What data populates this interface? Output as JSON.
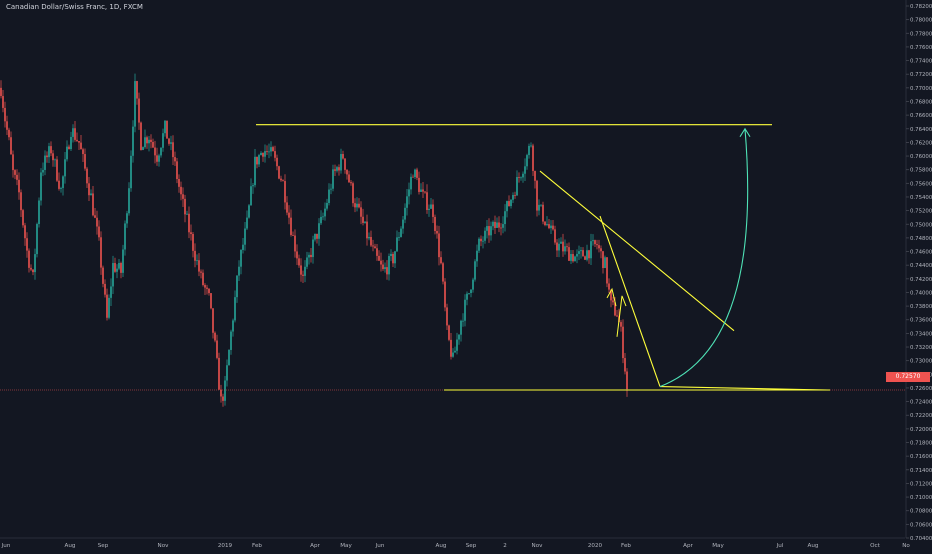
{
  "header": {
    "title": "Canadian Dollar/Swiss Franc, 1D, FXCM"
  },
  "last_price_badge": "0.72570",
  "colors": {
    "background": "#131722",
    "bull": "#26a69a",
    "bear": "#ef5350",
    "drawing": "#ffff3b",
    "arrow": "#4fe3b7",
    "axis_text": "#b2b5be",
    "price_line": "#ef5350"
  },
  "chart_data": {
    "type": "candlestick",
    "title": "Canadian Dollar/Swiss Franc, 1D, FXCM",
    "y_axis": {
      "ticks": [
        "0.78200",
        "0.78000",
        "0.77800",
        "0.77600",
        "0.77400",
        "0.77200",
        "0.77000",
        "0.76800",
        "0.76600",
        "0.76400",
        "0.76200",
        "0.76000",
        "0.75800",
        "0.75600",
        "0.75400",
        "0.75200",
        "0.75000",
        "0.74800",
        "0.74600",
        "0.74400",
        "0.74200",
        "0.74000",
        "0.73800",
        "0.73600",
        "0.73400",
        "0.73200",
        "0.73000",
        "0.72800",
        "0.72600",
        "0.72400",
        "0.72200",
        "0.72000",
        "0.71800",
        "0.71600",
        "0.71400",
        "0.71200",
        "0.71000",
        "0.70800",
        "0.70600",
        "0.70400"
      ],
      "range": [
        0.704,
        0.782
      ]
    },
    "x_axis": {
      "ticks": [
        "Jun",
        "Aug",
        "Sep",
        "Nov",
        "2019",
        "Feb",
        "Apr",
        "May",
        "Jun",
        "Aug",
        "Sep",
        "2",
        "Nov",
        "2020",
        "Feb",
        "Apr",
        "May",
        "Jul",
        "Aug",
        "Oct",
        "No"
      ]
    },
    "last_price": 0.7257,
    "price_series": [
      {
        "t": 0,
        "v": 0.77
      },
      {
        "t": 4,
        "v": 0.7655
      },
      {
        "t": 8,
        "v": 0.762
      },
      {
        "t": 12,
        "v": 0.7575
      },
      {
        "t": 18,
        "v": 0.7545
      },
      {
        "t": 26,
        "v": 0.746
      },
      {
        "t": 32,
        "v": 0.742
      },
      {
        "t": 40,
        "v": 0.758
      },
      {
        "t": 50,
        "v": 0.761
      },
      {
        "t": 60,
        "v": 0.755
      },
      {
        "t": 70,
        "v": 0.764
      },
      {
        "t": 78,
        "v": 0.762
      },
      {
        "t": 90,
        "v": 0.754
      },
      {
        "t": 98,
        "v": 0.747
      },
      {
        "t": 106,
        "v": 0.736
      },
      {
        "t": 112,
        "v": 0.744
      },
      {
        "t": 120,
        "v": 0.743
      },
      {
        "t": 128,
        "v": 0.756
      },
      {
        "t": 134,
        "v": 0.77
      },
      {
        "t": 140,
        "v": 0.762
      },
      {
        "t": 148,
        "v": 0.763
      },
      {
        "t": 156,
        "v": 0.76
      },
      {
        "t": 164,
        "v": 0.764
      },
      {
        "t": 172,
        "v": 0.76
      },
      {
        "t": 180,
        "v": 0.754
      },
      {
        "t": 190,
        "v": 0.748
      },
      {
        "t": 200,
        "v": 0.742
      },
      {
        "t": 208,
        "v": 0.739
      },
      {
        "t": 214,
        "v": 0.732
      },
      {
        "t": 220,
        "v": 0.724
      },
      {
        "t": 224,
        "v": 0.726
      },
      {
        "t": 230,
        "v": 0.734
      },
      {
        "t": 238,
        "v": 0.744
      },
      {
        "t": 246,
        "v": 0.75
      },
      {
        "t": 254,
        "v": 0.759
      },
      {
        "t": 262,
        "v": 0.761
      },
      {
        "t": 272,
        "v": 0.76
      },
      {
        "t": 282,
        "v": 0.756
      },
      {
        "t": 292,
        "v": 0.748
      },
      {
        "t": 302,
        "v": 0.742
      },
      {
        "t": 312,
        "v": 0.747
      },
      {
        "t": 322,
        "v": 0.751
      },
      {
        "t": 332,
        "v": 0.757
      },
      {
        "t": 342,
        "v": 0.76
      },
      {
        "t": 352,
        "v": 0.754
      },
      {
        "t": 362,
        "v": 0.75
      },
      {
        "t": 372,
        "v": 0.746
      },
      {
        "t": 382,
        "v": 0.743
      },
      {
        "t": 392,
        "v": 0.745
      },
      {
        "t": 402,
        "v": 0.751
      },
      {
        "t": 412,
        "v": 0.758
      },
      {
        "t": 422,
        "v": 0.754
      },
      {
        "t": 432,
        "v": 0.752
      },
      {
        "t": 440,
        "v": 0.744
      },
      {
        "t": 446,
        "v": 0.734
      },
      {
        "t": 452,
        "v": 0.73
      },
      {
        "t": 460,
        "v": 0.736
      },
      {
        "t": 468,
        "v": 0.74
      },
      {
        "t": 478,
        "v": 0.747
      },
      {
        "t": 488,
        "v": 0.749
      },
      {
        "t": 498,
        "v": 0.75
      },
      {
        "t": 508,
        "v": 0.753
      },
      {
        "t": 518,
        "v": 0.757
      },
      {
        "t": 526,
        "v": 0.76
      },
      {
        "t": 530,
        "v": 0.762
      },
      {
        "t": 536,
        "v": 0.753
      },
      {
        "t": 546,
        "v": 0.75
      },
      {
        "t": 556,
        "v": 0.747
      },
      {
        "t": 566,
        "v": 0.746
      },
      {
        "t": 576,
        "v": 0.745
      },
      {
        "t": 586,
        "v": 0.746
      },
      {
        "t": 596,
        "v": 0.747
      },
      {
        "t": 604,
        "v": 0.744
      },
      {
        "t": 610,
        "v": 0.738
      },
      {
        "t": 616,
        "v": 0.737
      },
      {
        "t": 620,
        "v": 0.734
      },
      {
        "t": 624,
        "v": 0.729
      },
      {
        "t": 626,
        "v": 0.7258
      }
    ],
    "drawings": [
      {
        "kind": "hline",
        "name": "resistance-line",
        "t0": 256,
        "t1": 772,
        "v": 0.7646
      },
      {
        "kind": "hline",
        "name": "support-line",
        "t0": 444,
        "t1": 830,
        "v": 0.7257
      },
      {
        "kind": "segment",
        "name": "descending-trendline",
        "t0": 540,
        "v0": 0.7578,
        "t1": 734,
        "v1": 0.7344
      },
      {
        "kind": "segment",
        "name": "steep-trendline",
        "t0": 600,
        "v0": 0.7512,
        "t1": 660,
        "v1": 0.7262
      },
      {
        "kind": "segment",
        "name": "triangle-base",
        "t0": 660,
        "v0": 0.7262,
        "t1": 828,
        "v1": 0.7257
      }
    ],
    "projection_arrow": {
      "from_t": 660,
      "from_v": 0.7262,
      "to_t": 745,
      "to_v": 0.764
    }
  }
}
